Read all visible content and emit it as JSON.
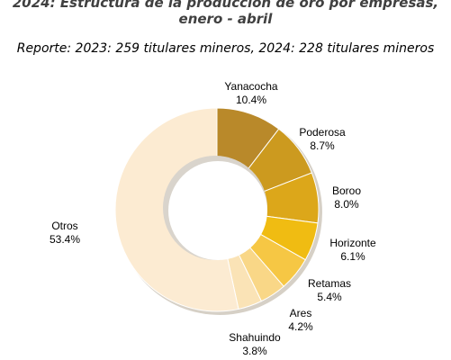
{
  "chart_data": {
    "type": "pie",
    "variant": "donut",
    "title_lines": [
      "2024: Estructura de la producción de oro por empresas,",
      "enero - abril"
    ],
    "subtitle": "Reporte: 2023: 259 titulares mineros, 2024: 228 titulares mineros",
    "slices": [
      {
        "name": "Yanacocha",
        "value": 10.4,
        "label": "10.4%",
        "color": "#B9892A"
      },
      {
        "name": "Poderosa",
        "value": 8.7,
        "label": "8.7%",
        "color": "#CC9A1F"
      },
      {
        "name": "Boroo",
        "value": 8.0,
        "label": "8.0%",
        "color": "#DCA71A"
      },
      {
        "name": "Horizonte",
        "value": 6.1,
        "label": "6.1%",
        "color": "#F0BC12"
      },
      {
        "name": "Retamas",
        "value": 5.4,
        "label": "5.4%",
        "color": "#F6C744"
      },
      {
        "name": "Ares",
        "value": 4.2,
        "label": "4.2%",
        "color": "#F9D787"
      },
      {
        "name": "Shahuindo",
        "value": 3.8,
        "label": "3.8%",
        "color": "#FAE3B6"
      },
      {
        "name": "Otros",
        "value": 53.4,
        "label": "53.4%",
        "color": "#FCEBD2"
      }
    ],
    "legend": "none"
  }
}
